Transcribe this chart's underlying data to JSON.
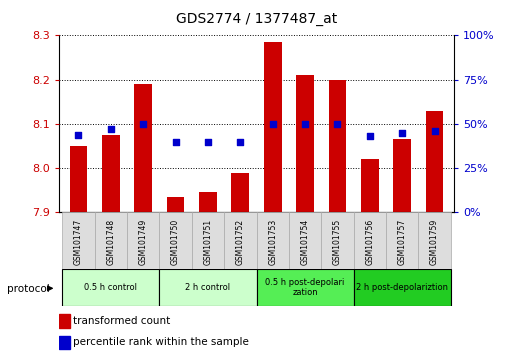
{
  "title": "GDS2774 / 1377487_at",
  "categories": [
    "GSM101747",
    "GSM101748",
    "GSM101749",
    "GSM101750",
    "GSM101751",
    "GSM101752",
    "GSM101753",
    "GSM101754",
    "GSM101755",
    "GSM101756",
    "GSM101757",
    "GSM101759"
  ],
  "bar_values": [
    8.05,
    8.075,
    8.19,
    7.935,
    7.945,
    7.99,
    8.285,
    8.21,
    8.2,
    8.02,
    8.065,
    8.13
  ],
  "percentile_values": [
    44,
    47,
    50,
    40,
    40,
    40,
    50,
    50,
    50,
    43,
    45,
    46
  ],
  "bar_bottom": 7.9,
  "ylim": [
    7.9,
    8.3
  ],
  "ylim_right": [
    0,
    100
  ],
  "yticks_left": [
    7.9,
    8.0,
    8.1,
    8.2,
    8.3
  ],
  "yticks_right": [
    0,
    25,
    50,
    75,
    100
  ],
  "bar_color": "#cc0000",
  "dot_color": "#0000cc",
  "protocol_groups": [
    {
      "label": "0.5 h control",
      "start": 0,
      "end": 2,
      "color": "#ccffcc"
    },
    {
      "label": "2 h control",
      "start": 3,
      "end": 5,
      "color": "#ccffcc"
    },
    {
      "label": "0.5 h post-depolarization",
      "start": 6,
      "end": 8,
      "color": "#55ee55"
    },
    {
      "label": "2 h post-depolariztion",
      "start": 9,
      "end": 11,
      "color": "#22cc22"
    }
  ],
  "legend_bar_label": "transformed count",
  "legend_dot_label": "percentile rank within the sample",
  "tick_label_color_left": "#cc0000",
  "tick_label_color_right": "#0000cc",
  "label_box_color": "#dddddd",
  "label_box_edge": "#aaaaaa",
  "proto_group0_color": "#ccffcc",
  "proto_group1_color": "#ccffcc",
  "proto_group2_color": "#55ee55",
  "proto_group3_color": "#22cc22"
}
